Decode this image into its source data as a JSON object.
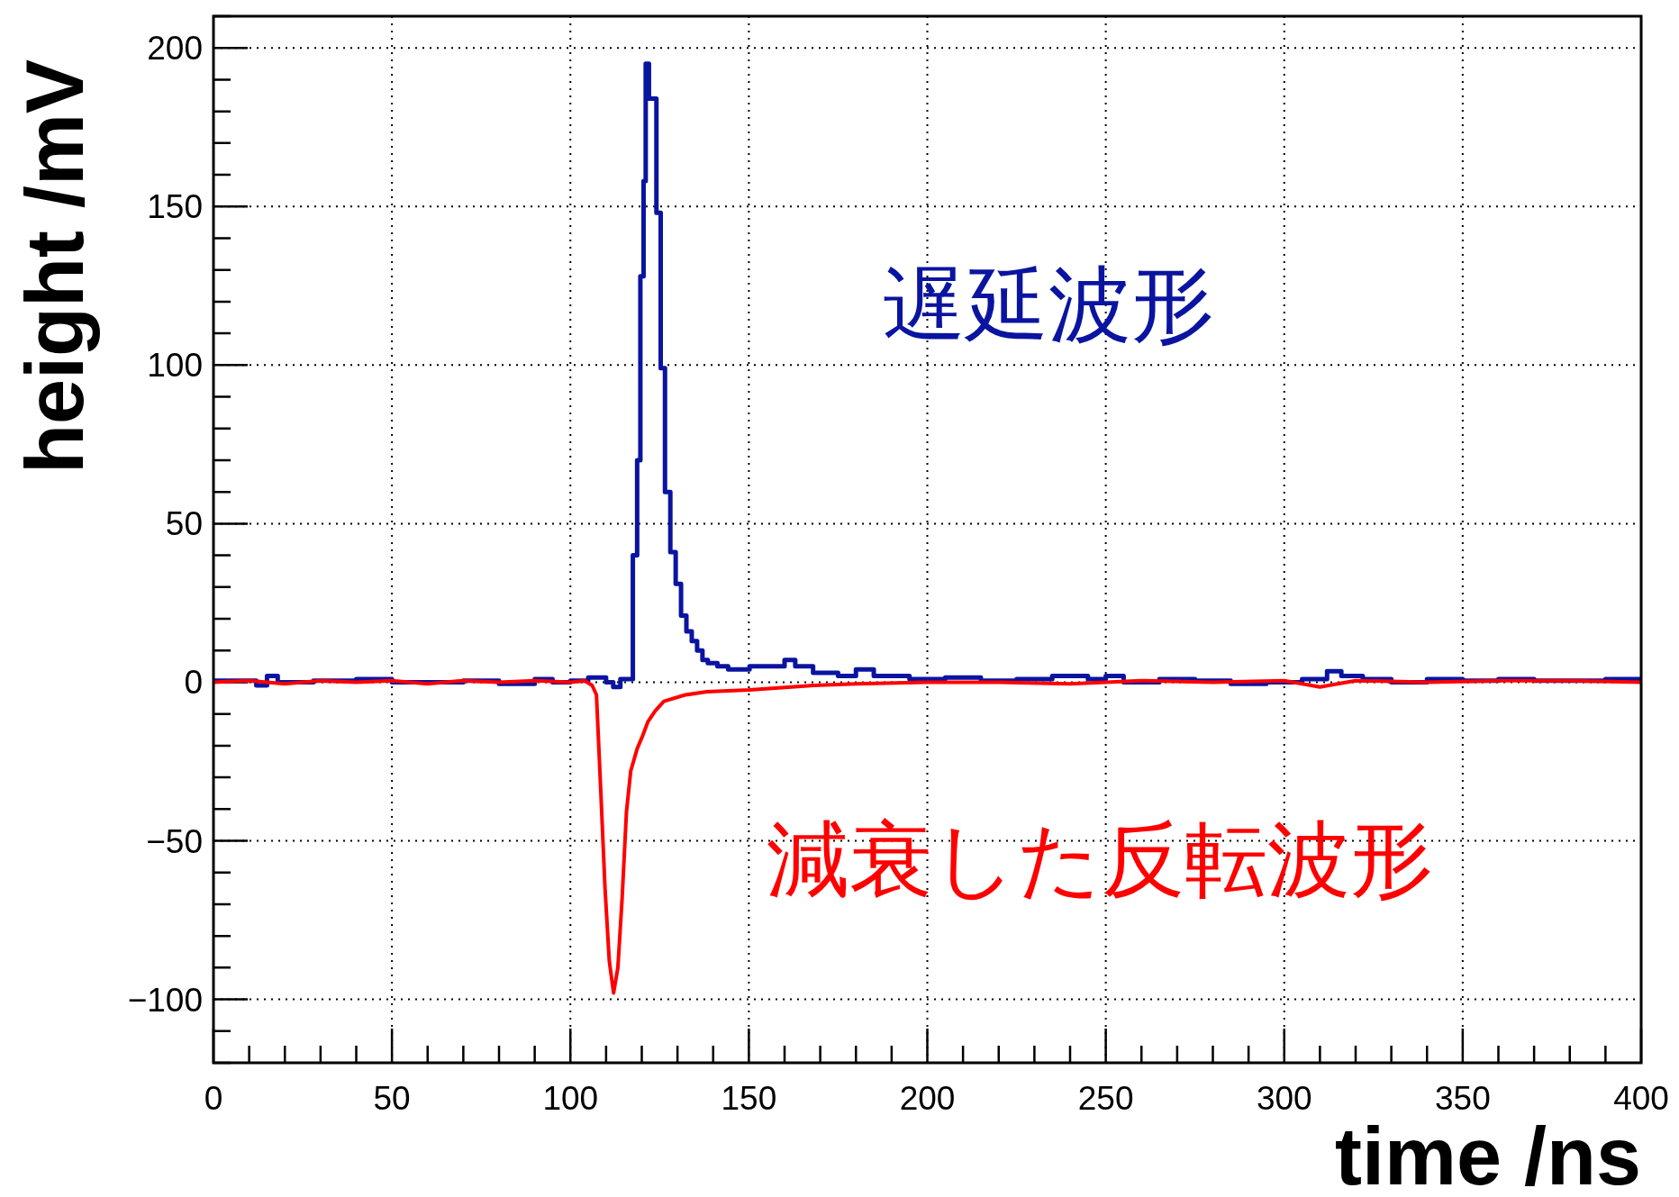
{
  "chart_data": {
    "type": "line",
    "xlabel": "time /ns",
    "ylabel": "height /mV",
    "xlim": [
      0,
      400
    ],
    "xticks": [
      0,
      50,
      100,
      150,
      200,
      250,
      300,
      350,
      400
    ],
    "ylim": [
      -120,
      210
    ],
    "yticks": [
      -100,
      -50,
      0,
      50,
      100,
      150,
      200
    ],
    "grid": true,
    "legend": false,
    "series": [
      {
        "name": "遅延波形",
        "type": "step",
        "color": "#0a14a0",
        "x": [
          0,
          12,
          15,
          18,
          28,
          40,
          50,
          70,
          80,
          90,
          95,
          100,
          105,
          110,
          112,
          114,
          116,
          117.5,
          118.7,
          119.6,
          120.5,
          121.1,
          122,
          122.9,
          124.1,
          125.3,
          126.5,
          128,
          129.5,
          131,
          132.5,
          134,
          135.5,
          137,
          138.5,
          141.2,
          144.2,
          150.2,
          156.2,
          160,
          163,
          168,
          175,
          180,
          185,
          195,
          205,
          215,
          225,
          235,
          245,
          250,
          255,
          265,
          275,
          285,
          295,
          305,
          312,
          316,
          322,
          330,
          340,
          350,
          360,
          370,
          380,
          390,
          398,
          400
        ],
        "values": [
          0.5,
          -1,
          2,
          0,
          0.5,
          1,
          0,
          0.5,
          -0.5,
          1,
          0,
          0.5,
          1.5,
          0,
          -1.5,
          1,
          1,
          40,
          70,
          128,
          158,
          195,
          184,
          184,
          148,
          99,
          60,
          41,
          31,
          21,
          16,
          13,
          10,
          7,
          6,
          5,
          4,
          5,
          5,
          7,
          5,
          3,
          2,
          4,
          2,
          1,
          1.5,
          0.5,
          1,
          2,
          1,
          2,
          0,
          1,
          0.5,
          -0.5,
          0,
          1,
          3.5,
          2,
          1,
          0,
          1,
          0.5,
          1,
          0.5,
          0.5,
          1,
          1,
          1
        ]
      },
      {
        "name": "減衰した反転波形",
        "type": "line",
        "color": "#ff0000",
        "x": [
          0,
          10,
          20,
          30,
          40,
          50,
          60,
          70,
          80,
          90,
          100,
          104,
          106.1,
          107.3,
          108.5,
          109.7,
          110.9,
          112.1,
          113.3,
          114.5,
          115.7,
          116.9,
          118.7,
          120.2,
          121.7,
          123.8,
          126.2,
          132.2,
          138.2,
          150.2,
          168.2,
          180,
          200,
          220,
          240,
          260,
          280,
          300,
          310,
          320,
          340,
          360,
          380,
          400
        ],
        "values": [
          0,
          0.5,
          -0.5,
          0.5,
          0,
          0.5,
          -0.5,
          0.5,
          0,
          0.5,
          0,
          0.5,
          -1,
          -4,
          -34,
          -65,
          -88,
          -98,
          -90,
          -68,
          -41,
          -28,
          -21,
          -17,
          -12.5,
          -9,
          -6,
          -4,
          -3,
          -2.4,
          -1,
          -0.5,
          0,
          0,
          -0.5,
          0.5,
          0,
          0.5,
          -1.5,
          0.5,
          0,
          0.5,
          0.5,
          0
        ]
      }
    ]
  }
}
